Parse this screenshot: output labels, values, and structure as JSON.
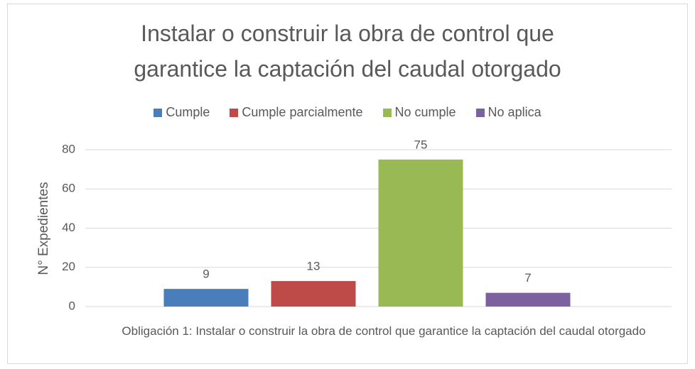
{
  "chart_data": {
    "type": "bar",
    "title": "Instalar o construir la obra de control que garantice la captación del caudal otorgado",
    "y_label": "N° Expedientes",
    "categories": [
      "Obligación 1:  Instalar o construir la obra de control que garantice la captación del caudal otorgado"
    ],
    "series": [
      {
        "name": "Cumple",
        "color": "#4a7ebb",
        "values": [
          9
        ]
      },
      {
        "name": "Cumple parcialmente",
        "color": "#be4b48",
        "values": [
          13
        ]
      },
      {
        "name": "No cumple",
        "color": "#98b954",
        "values": [
          75
        ]
      },
      {
        "name": "No aplica",
        "color": "#7d60a0",
        "values": [
          7
        ]
      }
    ],
    "ylim": [
      0,
      80
    ],
    "yticks": [
      0,
      20,
      40,
      60,
      80
    ],
    "grid": true,
    "legend": "top"
  }
}
